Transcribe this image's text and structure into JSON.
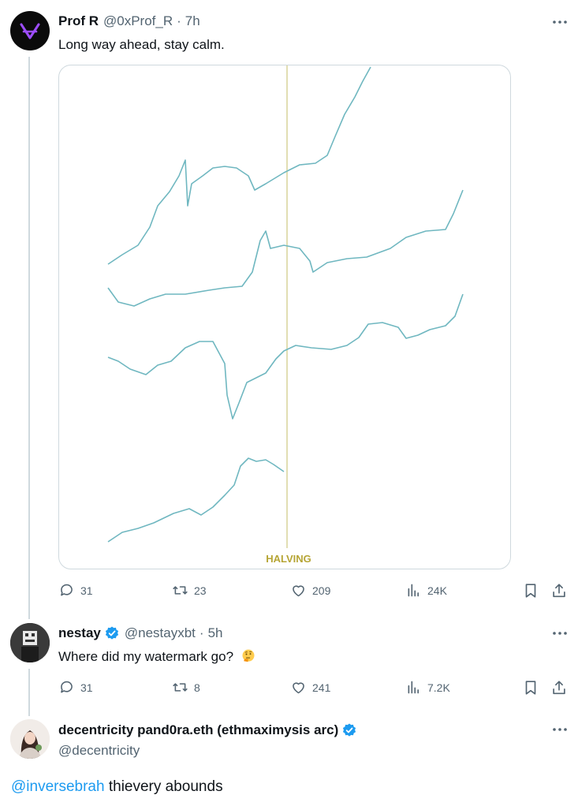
{
  "tweet1": {
    "display_name": "Prof R",
    "handle": "@0xProf_R",
    "separator": "·",
    "time": "7h",
    "text": "Long way ahead, stay calm.",
    "media": {
      "label": "HALVING",
      "label_color": "#b6a535",
      "line_color": "#6fb7c0",
      "divider_color": "#d8d39a"
    },
    "replies": "31",
    "reposts": "23",
    "likes": "209",
    "views": "24K"
  },
  "tweet2": {
    "display_name": "nestay",
    "handle": "@nestayxbt",
    "separator": "·",
    "time": "5h",
    "text": "Where did my watermark go?",
    "emoji": "thinking-face",
    "replies": "31",
    "reposts": "8",
    "likes": "241",
    "views": "7.2K"
  },
  "tweet3": {
    "display_name": "decentricity pand0ra.eth (ethmaximysis arc)",
    "handle": "@decentricity",
    "mention": "@inversebrah",
    "text": " thievery abounds"
  },
  "colors": {
    "verified": "#1d9bf0",
    "muted": "#536471",
    "thread_line": "#cfd9de"
  }
}
